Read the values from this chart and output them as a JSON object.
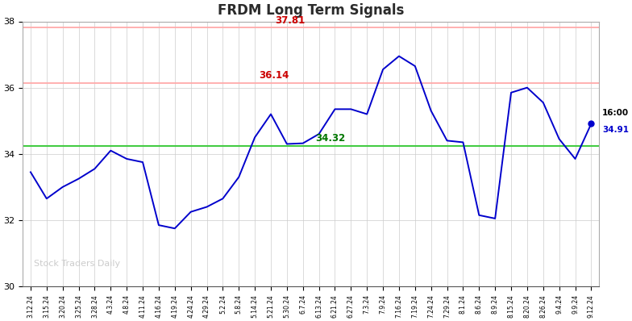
{
  "title": "FRDM Long Term Signals",
  "title_color": "#2b2b2b",
  "line_color": "#0000cc",
  "background_color": "#ffffff",
  "plot_bg_color": "#ffffff",
  "grid_color": "#cccccc",
  "ylim": [
    30,
    38
  ],
  "yticks": [
    30,
    32,
    34,
    36,
    38
  ],
  "hline_green": 34.25,
  "hline_green_color": "#44cc44",
  "hline_red1": 36.14,
  "hline_red2": 37.81,
  "hline_red_color": "#ffaaaa",
  "label_37_81": "37.81",
  "label_36_14": "36.14",
  "label_34_32": "34.32",
  "label_16_00": "16:00",
  "label_34_91": "34.91",
  "watermark": "Stock Traders Daily",
  "xlabels": [
    "3.12.24",
    "3.15.24",
    "3.20.24",
    "3.25.24",
    "3.28.24",
    "4.3.24",
    "4.8.24",
    "4.11.24",
    "4.16.24",
    "4.19.24",
    "4.24.24",
    "4.29.24",
    "5.2.24",
    "5.8.24",
    "5.14.24",
    "5.21.24",
    "5.30.24",
    "6.7.24",
    "6.13.24",
    "6.21.24",
    "6.27.24",
    "7.3.24",
    "7.9.24",
    "7.16.24",
    "7.19.24",
    "7.24.24",
    "7.29.24",
    "8.1.24",
    "8.6.24",
    "8.9.24",
    "8.15.24",
    "8.20.24",
    "8.26.24",
    "9.4.24",
    "9.9.24",
    "9.12.24"
  ],
  "ydata": [
    33.45,
    32.65,
    33.0,
    33.25,
    33.55,
    34.1,
    33.85,
    33.75,
    31.85,
    31.75,
    32.25,
    32.4,
    32.65,
    33.3,
    34.5,
    35.2,
    34.3,
    34.32,
    34.6,
    35.35,
    35.35,
    35.2,
    36.55,
    36.95,
    36.65,
    35.3,
    34.4,
    34.35,
    32.15,
    32.05,
    35.85,
    36.0,
    35.55,
    34.45,
    33.85,
    34.91
  ],
  "dot_last_color": "#0000cc",
  "dot_last_size": 5
}
